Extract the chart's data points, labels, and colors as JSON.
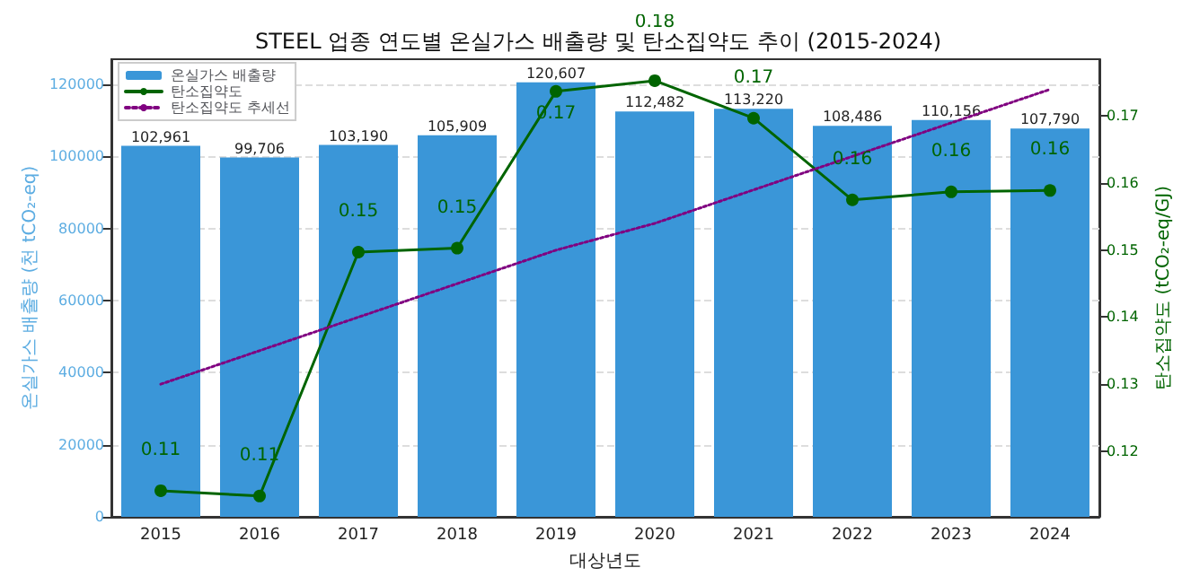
{
  "chart_data": {
    "type": "bar",
    "title": "STEEL 업종 연도별 온실가스 배출량 및 탄소집약도 추이 (2015-2024)",
    "xlabel": "대상년도",
    "ylabel": "온실가스 배출량 (천 tCO₂-eq)",
    "y2label": "탄소집약도 (tCO₂-eq/GJ)",
    "categories": [
      "2015",
      "2016",
      "2017",
      "2018",
      "2019",
      "2020",
      "2021",
      "2022",
      "2023",
      "2024"
    ],
    "series": [
      {
        "name": "온실가스 배출량",
        "color": "#3a96d8",
        "values": [
          102961,
          99706,
          103190,
          105909,
          120607,
          112482,
          113220,
          108486,
          110156,
          107790
        ],
        "value_labels": [
          "102,961",
          "99,706",
          "103,190",
          "105,909",
          "120,607",
          "112,482",
          "113,220",
          "108,486",
          "110,156",
          "107,790"
        ]
      },
      {
        "name": "탄소집약도",
        "type": "line",
        "axis": "y2",
        "color": "#006400",
        "marker": "circle",
        "line_style": "solid",
        "values": [
          0.1141,
          0.1133,
          0.1497,
          0.1503,
          0.1737,
          0.1753,
          0.1697,
          0.1575,
          0.1587,
          0.1589
        ],
        "value_labels": [
          "0.11",
          "0.11",
          "0.15",
          "0.15",
          "0.17",
          "0.18",
          "0.17",
          "0.16",
          "0.16",
          "0.16"
        ]
      },
      {
        "name": "탄소집약도 추세선",
        "type": "line",
        "axis": "y2",
        "color": "#800080",
        "marker": "none",
        "line_style": "dotted",
        "values": [
          0.13,
          0.135,
          0.14,
          0.145,
          0.15,
          0.154,
          0.159,
          0.164,
          0.169,
          0.174
        ]
      }
    ],
    "ylim": [
      0,
      127000
    ],
    "yticks": [
      0,
      20000,
      40000,
      60000,
      80000,
      100000,
      120000
    ],
    "y2lim": [
      0.1102,
      0.1785
    ],
    "y2ticks": [
      0.12,
      0.13,
      0.14,
      0.15,
      0.16,
      0.17
    ],
    "grid": "y",
    "legend": "top left"
  }
}
